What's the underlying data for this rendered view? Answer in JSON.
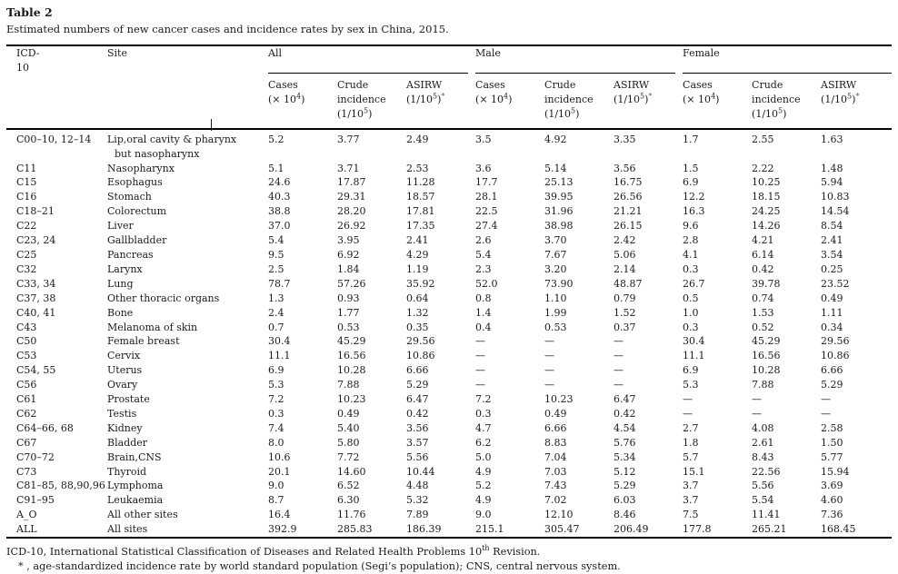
{
  "page": {
    "title": "Table 2",
    "caption": "Estimated numbers of new cancer cases and incidence rates by sex in China, 2015."
  },
  "table": {
    "columns": {
      "icd": "ICD-10",
      "site": "Site"
    },
    "groups": [
      {
        "label": "All"
      },
      {
        "label": "Male"
      },
      {
        "label": "Female"
      }
    ],
    "subhead": {
      "cases_line1": "Cases",
      "cases_line2_pre": "(× 10",
      "cases_sup": "4",
      "cases_line2_post": ")",
      "crude_line1": "Crude",
      "crude_line2": "incidence",
      "crude_line3_pre": "(1/10",
      "crude_sup": "5",
      "crude_line3_post": ")",
      "asirw_line1": "ASIRW",
      "asirw_line2_pre": "(1/10",
      "asirw_sup": "5",
      "asirw_line2_post": ")",
      "asirw_star": "*"
    },
    "rows": [
      {
        "icd": "C00–10, 12–14",
        "site": "Lip,oral cavity & pharynx\nbut nasopharynx",
        "v": [
          "5.2",
          "3.77",
          "2.49",
          "3.5",
          "4.92",
          "3.35",
          "1.7",
          "2.55",
          "1.63"
        ]
      },
      {
        "icd": "C11",
        "site": "Nasopharynx",
        "v": [
          "5.1",
          "3.71",
          "2.53",
          "3.6",
          "5.14",
          "3.56",
          "1.5",
          "2.22",
          "1.48"
        ]
      },
      {
        "icd": "C15",
        "site": "Esophagus",
        "v": [
          "24.6",
          "17.87",
          "11.28",
          "17.7",
          "25.13",
          "16.75",
          "6.9",
          "10.25",
          "5.94"
        ]
      },
      {
        "icd": "C16",
        "site": "Stomach",
        "v": [
          "40.3",
          "29.31",
          "18.57",
          "28.1",
          "39.95",
          "26.56",
          "12.2",
          "18.15",
          "10.83"
        ]
      },
      {
        "icd": "C18–21",
        "site": "Colorectum",
        "v": [
          "38.8",
          "28.20",
          "17.81",
          "22.5",
          "31.96",
          "21.21",
          "16.3",
          "24.25",
          "14.54"
        ]
      },
      {
        "icd": "C22",
        "site": "Liver",
        "v": [
          "37.0",
          "26.92",
          "17.35",
          "27.4",
          "38.98",
          "26.15",
          "9.6",
          "14.26",
          "8.54"
        ]
      },
      {
        "icd": "C23, 24",
        "site": "Gallbladder",
        "v": [
          "5.4",
          "3.95",
          "2.41",
          "2.6",
          "3.70",
          "2.42",
          "2.8",
          "4.21",
          "2.41"
        ]
      },
      {
        "icd": "C25",
        "site": "Pancreas",
        "v": [
          "9.5",
          "6.92",
          "4.29",
          "5.4",
          "7.67",
          "5.06",
          "4.1",
          "6.14",
          "3.54"
        ]
      },
      {
        "icd": "C32",
        "site": "Larynx",
        "v": [
          "2.5",
          "1.84",
          "1.19",
          "2.3",
          "3.20",
          "2.14",
          "0.3",
          "0.42",
          "0.25"
        ]
      },
      {
        "icd": "C33, 34",
        "site": "Lung",
        "v": [
          "78.7",
          "57.26",
          "35.92",
          "52.0",
          "73.90",
          "48.87",
          "26.7",
          "39.78",
          "23.52"
        ]
      },
      {
        "icd": "C37, 38",
        "site": "Other thoracic organs",
        "v": [
          "1.3",
          "0.93",
          "0.64",
          "0.8",
          "1.10",
          "0.79",
          "0.5",
          "0.74",
          "0.49"
        ]
      },
      {
        "icd": "C40, 41",
        "site": "Bone",
        "v": [
          "2.4",
          "1.77",
          "1.32",
          "1.4",
          "1.99",
          "1.52",
          "1.0",
          "1.53",
          "1.11"
        ]
      },
      {
        "icd": "C43",
        "site": "Melanoma of skin",
        "v": [
          "0.7",
          "0.53",
          "0.35",
          "0.4",
          "0.53",
          "0.37",
          "0.3",
          "0.52",
          "0.34"
        ]
      },
      {
        "icd": "C50",
        "site": "Female breast",
        "v": [
          "30.4",
          "45.29",
          "29.56",
          "—",
          "—",
          "—",
          "30.4",
          "45.29",
          "29.56"
        ]
      },
      {
        "icd": "C53",
        "site": "Cervix",
        "v": [
          "11.1",
          "16.56",
          "10.86",
          "—",
          "—",
          "—",
          "11.1",
          "16.56",
          "10.86"
        ]
      },
      {
        "icd": "C54, 55",
        "site": "Uterus",
        "v": [
          "6.9",
          "10.28",
          "6.66",
          "—",
          "—",
          "—",
          "6.9",
          "10.28",
          "6.66"
        ]
      },
      {
        "icd": "C56",
        "site": "Ovary",
        "v": [
          "5.3",
          "7.88",
          "5.29",
          "—",
          "—",
          "—",
          "5.3",
          "7.88",
          "5.29"
        ]
      },
      {
        "icd": "C61",
        "site": "Prostate",
        "v": [
          "7.2",
          "10.23",
          "6.47",
          "7.2",
          "10.23",
          "6.47",
          "—",
          "—",
          "—"
        ]
      },
      {
        "icd": "C62",
        "site": "Testis",
        "v": [
          "0.3",
          "0.49",
          "0.42",
          "0.3",
          "0.49",
          "0.42",
          "—",
          "—",
          "—"
        ]
      },
      {
        "icd": "C64–66, 68",
        "site": "Kidney",
        "v": [
          "7.4",
          "5.40",
          "3.56",
          "4.7",
          "6.66",
          "4.54",
          "2.7",
          "4.08",
          "2.58"
        ]
      },
      {
        "icd": "C67",
        "site": "Bladder",
        "v": [
          "8.0",
          "5.80",
          "3.57",
          "6.2",
          "8.83",
          "5.76",
          "1.8",
          "2.61",
          "1.50"
        ]
      },
      {
        "icd": "C70–72",
        "site": "Brain,CNS",
        "v": [
          "10.6",
          "7.72",
          "5.56",
          "5.0",
          "7.04",
          "5.34",
          "5.7",
          "8.43",
          "5.77"
        ]
      },
      {
        "icd": "C73",
        "site": "Thyroid",
        "v": [
          "20.1",
          "14.60",
          "10.44",
          "4.9",
          "7.03",
          "5.12",
          "15.1",
          "22.56",
          "15.94"
        ]
      },
      {
        "icd": "C81–85, 88,90,96",
        "site": "Lymphoma",
        "v": [
          "9.0",
          "6.52",
          "4.48",
          "5.2",
          "7.43",
          "5.29",
          "3.7",
          "5.56",
          "3.69"
        ]
      },
      {
        "icd": "C91–95",
        "site": "Leukaemia",
        "v": [
          "8.7",
          "6.30",
          "5.32",
          "4.9",
          "7.02",
          "6.03",
          "3.7",
          "5.54",
          "4.60"
        ]
      },
      {
        "icd": "A_O",
        "site": "All other sites",
        "v": [
          "16.4",
          "11.76",
          "7.89",
          "9.0",
          "12.10",
          "8.46",
          "7.5",
          "11.41",
          "7.36"
        ]
      },
      {
        "icd": "ALL",
        "site": "All sites",
        "v": [
          "392.9",
          "285.83",
          "186.39",
          "215.1",
          "305.47",
          "206.49",
          "177.8",
          "265.21",
          "168.45"
        ]
      }
    ]
  },
  "footnotes": {
    "line1_pre": "ICD-10, International Statistical Classification of Diseases and Related Health Problems 10",
    "line1_sup": "th",
    "line1_post": " Revision.",
    "line2": "* , age-standardized incidence rate by world standard population (Segi’s population); CNS, central nervous system."
  }
}
